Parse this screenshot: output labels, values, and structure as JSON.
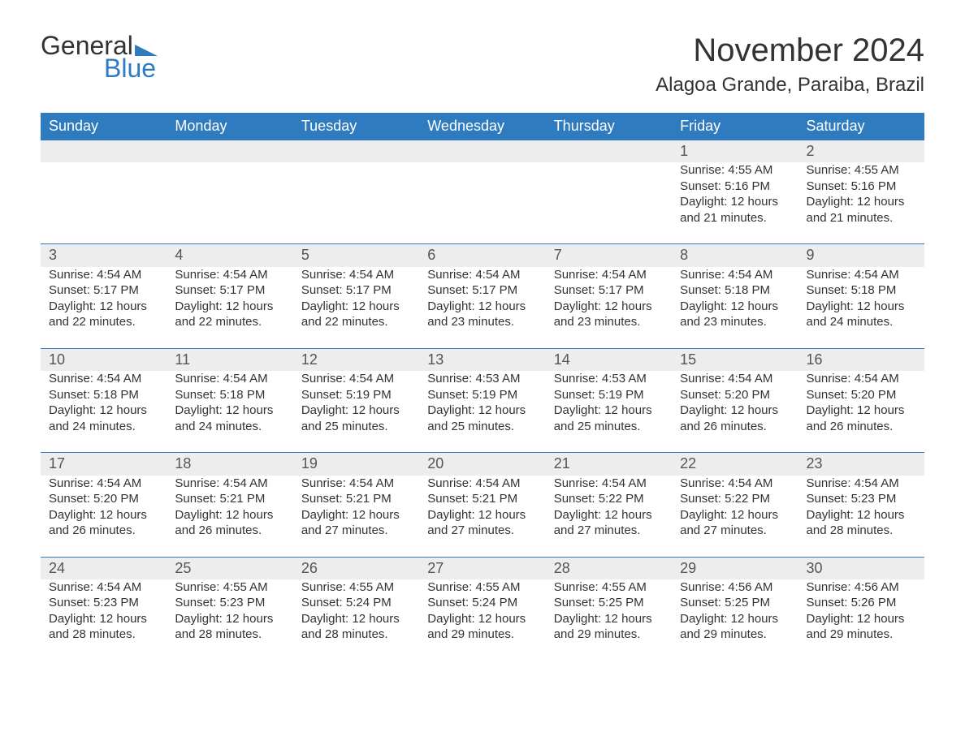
{
  "logo": {
    "line1": "General",
    "line2": "Blue"
  },
  "title": "November 2024",
  "location": "Alagoa Grande, Paraiba, Brazil",
  "colors": {
    "brand_blue": "#2f7bbf",
    "header_text": "#ffffff",
    "daynum_bg": "#ededed",
    "body_text": "#333333",
    "page_bg": "#ffffff"
  },
  "layout": {
    "columns": 7,
    "month_title_fontsize": 40,
    "location_fontsize": 24,
    "dayheader_fontsize": 18,
    "cell_fontsize": 15
  },
  "day_headers": [
    "Sunday",
    "Monday",
    "Tuesday",
    "Wednesday",
    "Thursday",
    "Friday",
    "Saturday"
  ],
  "weeks": [
    [
      null,
      null,
      null,
      null,
      null,
      {
        "n": "1",
        "sr": "4:55 AM",
        "ss": "5:16 PM",
        "dl": "12 hours and 21 minutes."
      },
      {
        "n": "2",
        "sr": "4:55 AM",
        "ss": "5:16 PM",
        "dl": "12 hours and 21 minutes."
      }
    ],
    [
      {
        "n": "3",
        "sr": "4:54 AM",
        "ss": "5:17 PM",
        "dl": "12 hours and 22 minutes."
      },
      {
        "n": "4",
        "sr": "4:54 AM",
        "ss": "5:17 PM",
        "dl": "12 hours and 22 minutes."
      },
      {
        "n": "5",
        "sr": "4:54 AM",
        "ss": "5:17 PM",
        "dl": "12 hours and 22 minutes."
      },
      {
        "n": "6",
        "sr": "4:54 AM",
        "ss": "5:17 PM",
        "dl": "12 hours and 23 minutes."
      },
      {
        "n": "7",
        "sr": "4:54 AM",
        "ss": "5:17 PM",
        "dl": "12 hours and 23 minutes."
      },
      {
        "n": "8",
        "sr": "4:54 AM",
        "ss": "5:18 PM",
        "dl": "12 hours and 23 minutes."
      },
      {
        "n": "9",
        "sr": "4:54 AM",
        "ss": "5:18 PM",
        "dl": "12 hours and 24 minutes."
      }
    ],
    [
      {
        "n": "10",
        "sr": "4:54 AM",
        "ss": "5:18 PM",
        "dl": "12 hours and 24 minutes."
      },
      {
        "n": "11",
        "sr": "4:54 AM",
        "ss": "5:18 PM",
        "dl": "12 hours and 24 minutes."
      },
      {
        "n": "12",
        "sr": "4:54 AM",
        "ss": "5:19 PM",
        "dl": "12 hours and 25 minutes."
      },
      {
        "n": "13",
        "sr": "4:53 AM",
        "ss": "5:19 PM",
        "dl": "12 hours and 25 minutes."
      },
      {
        "n": "14",
        "sr": "4:53 AM",
        "ss": "5:19 PM",
        "dl": "12 hours and 25 minutes."
      },
      {
        "n": "15",
        "sr": "4:54 AM",
        "ss": "5:20 PM",
        "dl": "12 hours and 26 minutes."
      },
      {
        "n": "16",
        "sr": "4:54 AM",
        "ss": "5:20 PM",
        "dl": "12 hours and 26 minutes."
      }
    ],
    [
      {
        "n": "17",
        "sr": "4:54 AM",
        "ss": "5:20 PM",
        "dl": "12 hours and 26 minutes."
      },
      {
        "n": "18",
        "sr": "4:54 AM",
        "ss": "5:21 PM",
        "dl": "12 hours and 26 minutes."
      },
      {
        "n": "19",
        "sr": "4:54 AM",
        "ss": "5:21 PM",
        "dl": "12 hours and 27 minutes."
      },
      {
        "n": "20",
        "sr": "4:54 AM",
        "ss": "5:21 PM",
        "dl": "12 hours and 27 minutes."
      },
      {
        "n": "21",
        "sr": "4:54 AM",
        "ss": "5:22 PM",
        "dl": "12 hours and 27 minutes."
      },
      {
        "n": "22",
        "sr": "4:54 AM",
        "ss": "5:22 PM",
        "dl": "12 hours and 27 minutes."
      },
      {
        "n": "23",
        "sr": "4:54 AM",
        "ss": "5:23 PM",
        "dl": "12 hours and 28 minutes."
      }
    ],
    [
      {
        "n": "24",
        "sr": "4:54 AM",
        "ss": "5:23 PM",
        "dl": "12 hours and 28 minutes."
      },
      {
        "n": "25",
        "sr": "4:55 AM",
        "ss": "5:23 PM",
        "dl": "12 hours and 28 minutes."
      },
      {
        "n": "26",
        "sr": "4:55 AM",
        "ss": "5:24 PM",
        "dl": "12 hours and 28 minutes."
      },
      {
        "n": "27",
        "sr": "4:55 AM",
        "ss": "5:24 PM",
        "dl": "12 hours and 29 minutes."
      },
      {
        "n": "28",
        "sr": "4:55 AM",
        "ss": "5:25 PM",
        "dl": "12 hours and 29 minutes."
      },
      {
        "n": "29",
        "sr": "4:56 AM",
        "ss": "5:25 PM",
        "dl": "12 hours and 29 minutes."
      },
      {
        "n": "30",
        "sr": "4:56 AM",
        "ss": "5:26 PM",
        "dl": "12 hours and 29 minutes."
      }
    ]
  ],
  "labels": {
    "sunrise_prefix": "Sunrise: ",
    "sunset_prefix": "Sunset: ",
    "daylight_prefix": "Daylight: "
  }
}
